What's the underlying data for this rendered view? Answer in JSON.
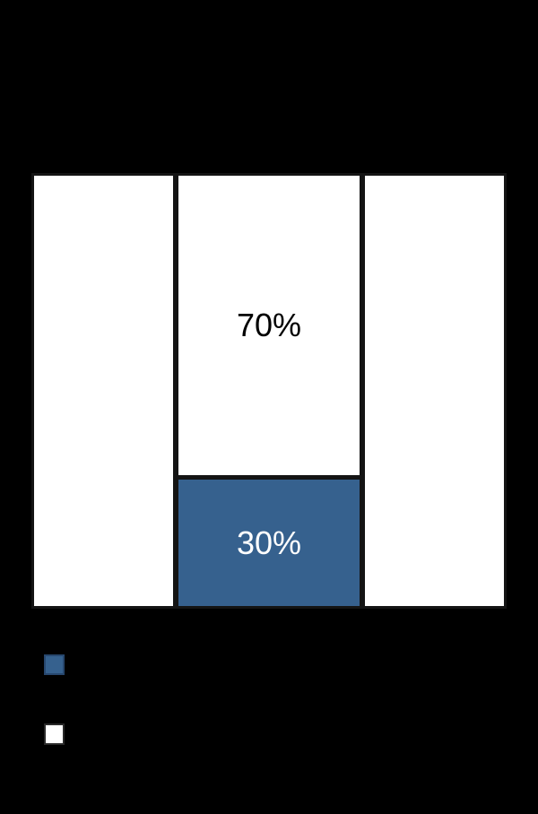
{
  "page": {
    "background_color": "#000000",
    "note_visible_text_only": "Only the two data labels are visibly rendered; chart title, axis and legend captions are not visible against the black background."
  },
  "chart_data": {
    "type": "bar",
    "subtype": "100-percent-stacked-column",
    "orientation": "vertical",
    "title": "",
    "xlabel": "",
    "ylabel": "",
    "ylim": [
      0,
      100
    ],
    "grid": false,
    "categories": [
      "",
      "",
      ""
    ],
    "series": [
      {
        "name": "",
        "swatch_color": "#ffffff",
        "values_pct": [
          100,
          70,
          100
        ]
      },
      {
        "name": "",
        "swatch_color": "#36618e",
        "values_pct": [
          0,
          30,
          0
        ]
      }
    ],
    "columns": [
      {
        "segments": [
          {
            "color": "#ffffff",
            "pct": 100,
            "label": ""
          }
        ]
      },
      {
        "segments": [
          {
            "color": "#ffffff",
            "pct": 70,
            "label": "70%"
          },
          {
            "color": "#36618e",
            "pct": 30,
            "label": "30%"
          }
        ]
      },
      {
        "segments": [
          {
            "color": "#ffffff",
            "pct": 100,
            "label": ""
          }
        ]
      }
    ],
    "legend": {
      "position": "bottom-left",
      "entries": [
        {
          "label": "",
          "swatch_color": "#36618e"
        },
        {
          "label": "",
          "swatch_color": "#ffffff"
        }
      ]
    },
    "colors": {
      "bar_blue": "#36618e",
      "bar_white": "#ffffff",
      "bar_border": "#141414",
      "background": "#000000",
      "label_on_white": "#000000",
      "label_on_blue": "#ffffff"
    }
  }
}
